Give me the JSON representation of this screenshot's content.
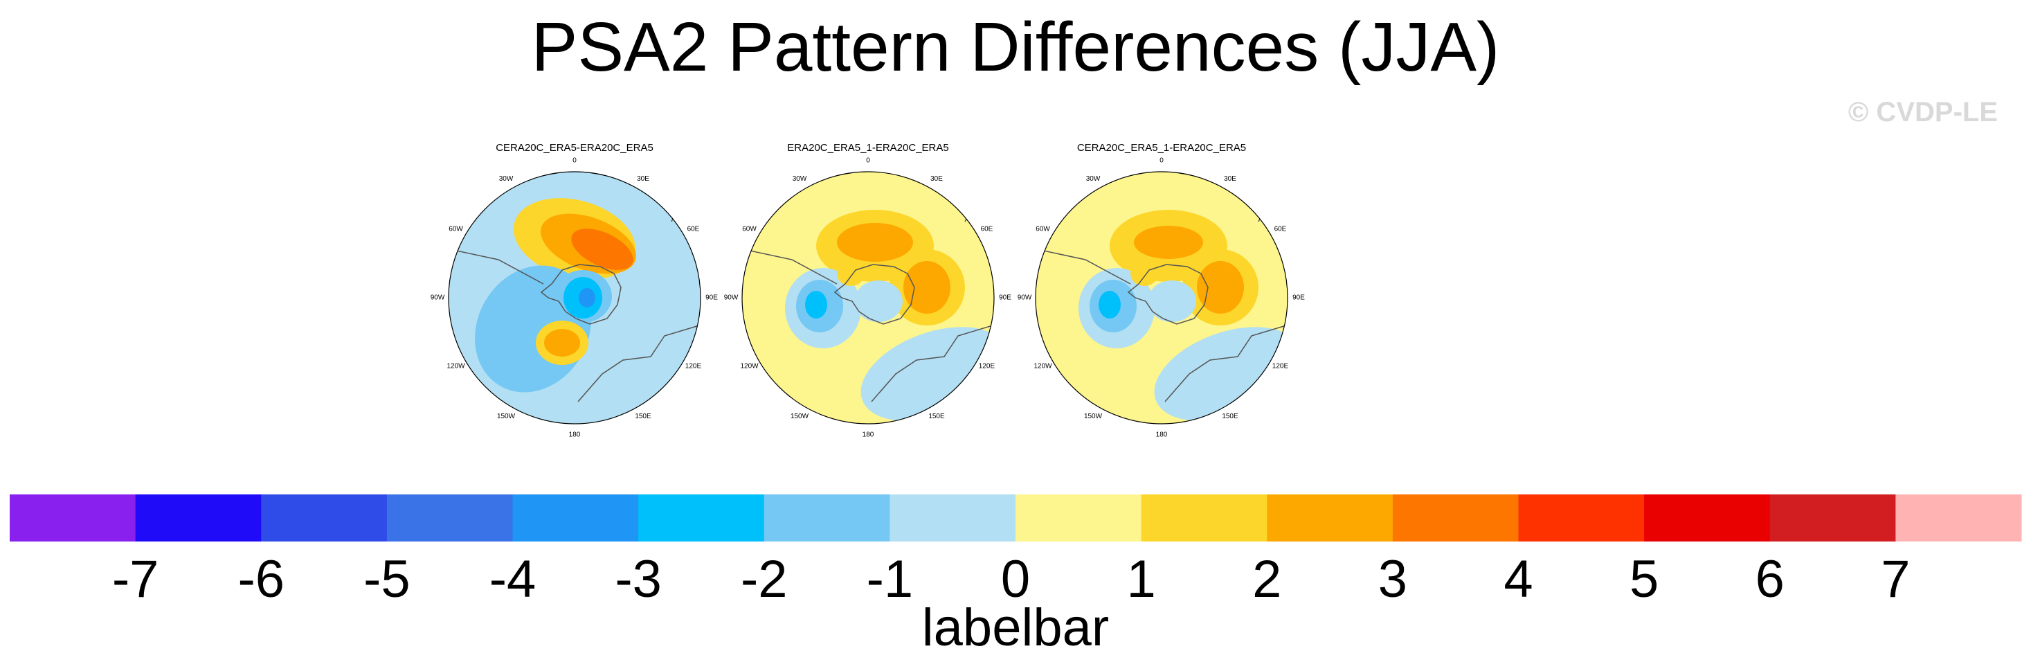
{
  "title": "PSA2 Pattern Differences (JJA)",
  "watermark": "© CVDP-LE",
  "chart_data": {
    "type": "heatmap",
    "projection": "south-polar-stereographic",
    "panels": [
      {
        "title": "CERA20C_ERA5-ERA20C_ERA5",
        "lon_labels": [
          "0",
          "30E",
          "60E",
          "90E",
          "120E",
          "150E",
          "180",
          "150W",
          "120W",
          "90W",
          "60W",
          "30W"
        ],
        "features": [
          {
            "kind": "positive",
            "max_value": 4,
            "location": "lon 10E, lat 55S"
          },
          {
            "kind": "positive",
            "max_value": 3,
            "location": "lon 160W, lat 60S"
          },
          {
            "kind": "negative",
            "min_value": -4,
            "location": "Antarctic interior"
          },
          {
            "kind": "negative",
            "min_value": -2,
            "location": "lon 110W, lat 45S"
          }
        ]
      },
      {
        "title": "ERA20C_ERA5_1-ERA20C_ERA5",
        "lon_labels": [
          "0",
          "30E",
          "60E",
          "90E",
          "120E",
          "150E",
          "180",
          "150W",
          "120W",
          "90W",
          "60W",
          "30W"
        ],
        "features": [
          {
            "kind": "positive",
            "max_value": 3,
            "location": "lon 0, lat 55S"
          },
          {
            "kind": "positive",
            "max_value": 3,
            "location": "lon 70E, lat 55S"
          },
          {
            "kind": "negative",
            "min_value": -3,
            "location": "lon 90W, lat 65S"
          },
          {
            "kind": "positive",
            "max_value": 1,
            "location": "lon 140W, lat 50S"
          }
        ]
      },
      {
        "title": "CERA20C_ERA5_1-ERA20C_ERA5",
        "lon_labels": [
          "0",
          "30E",
          "60E",
          "90E",
          "120E",
          "150E",
          "180",
          "150W",
          "120W",
          "90W",
          "60W",
          "30W"
        ],
        "features": [
          {
            "kind": "positive",
            "max_value": 2,
            "location": "lon 0, lat 55S"
          },
          {
            "kind": "positive",
            "max_value": 3,
            "location": "lon 70E, lat 55S"
          },
          {
            "kind": "negative",
            "min_value": -3,
            "location": "lon 90W, lat 65S"
          },
          {
            "kind": "positive",
            "max_value": 1,
            "location": "lon 140W, lat 50S"
          }
        ]
      }
    ],
    "colorbar": {
      "levels": [
        -7,
        -6,
        -5,
        -4,
        -3,
        -2,
        -1,
        0,
        1,
        2,
        3,
        4,
        5,
        6,
        7
      ],
      "tick_labels": [
        "-7",
        "-6",
        "-5",
        "-4",
        "-3",
        "-2",
        "-1",
        "0",
        "1",
        "2",
        "3",
        "4",
        "5",
        "6",
        "7"
      ],
      "colors": [
        "#8a20ee",
        "#1f0bf7",
        "#2f4be8",
        "#3a73e8",
        "#1f95f5",
        "#00c0fc",
        "#74c8f3",
        "#b2dff3",
        "#fdf58e",
        "#fdd62b",
        "#fda800",
        "#fd7600",
        "#fd3200",
        "#e90000",
        "#d21d21",
        "#ffb3b3"
      ],
      "label": "labelbar"
    }
  }
}
